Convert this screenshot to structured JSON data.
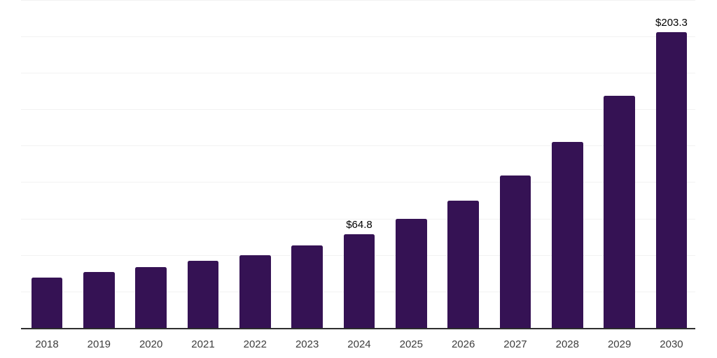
{
  "chart_data": {
    "type": "bar",
    "title": "",
    "xlabel": "",
    "ylabel": "",
    "categories": [
      "2018",
      "2019",
      "2020",
      "2021",
      "2022",
      "2023",
      "2024",
      "2025",
      "2026",
      "2027",
      "2028",
      "2029",
      "2030"
    ],
    "values": [
      35.1,
      38.8,
      42.3,
      46.3,
      50.3,
      57.1,
      64.8,
      75.2,
      87.8,
      104.8,
      128.2,
      159.8,
      203.3
    ],
    "bar_labels": [
      null,
      null,
      null,
      null,
      null,
      null,
      "$64.8",
      null,
      null,
      null,
      null,
      null,
      "$203.3"
    ],
    "ylim": [
      0,
      225
    ],
    "grid_step": 25,
    "grid": true,
    "legend": false,
    "y_axis_ticks_visible": false,
    "colors": {
      "bar": "#351254",
      "gridline": "#f2f2f2",
      "axis_line": "#2e2e2e",
      "axis_label": "#3d3d3d",
      "annotation": "#000000",
      "background": "#ffffff"
    }
  }
}
